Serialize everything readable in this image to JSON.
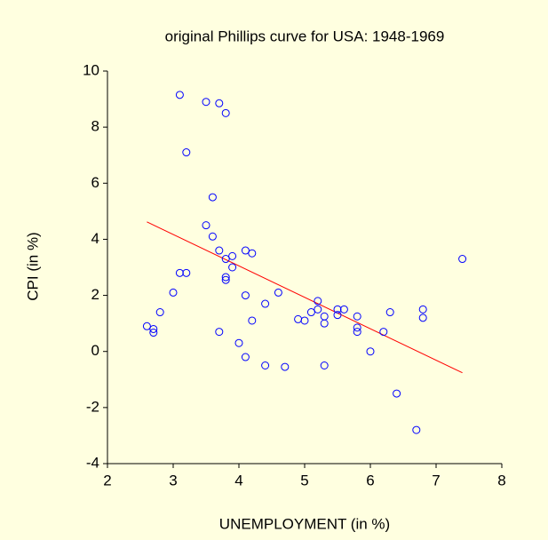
{
  "chart_data": {
    "type": "scatter",
    "title": "original Phillips curve for USA: 1948-1969",
    "x_label": "UNEMPLOYMENT (in %)",
    "y_label": "CPI (in %)",
    "xlim": [
      2,
      8
    ],
    "xticks": [
      2,
      3,
      4,
      5,
      6,
      7,
      8
    ],
    "ylim": [
      -4,
      10
    ],
    "yticks": [
      -4,
      -2,
      0,
      2,
      4,
      6,
      8,
      10
    ],
    "points": {
      "color": "#0000ff",
      "x": [
        2.6,
        2.7,
        2.7,
        2.8,
        3.0,
        3.1,
        3.1,
        3.2,
        3.2,
        3.5,
        3.5,
        3.6,
        3.6,
        3.7,
        3.7,
        3.7,
        3.8,
        3.8,
        3.8,
        3.8,
        3.9,
        3.9,
        4.0,
        4.1,
        4.1,
        4.1,
        4.2,
        4.2,
        4.4,
        4.4,
        4.6,
        4.7,
        4.9,
        5.0,
        5.1,
        5.2,
        5.2,
        5.3,
        5.3,
        5.3,
        5.5,
        5.5,
        5.6,
        5.8,
        5.8,
        5.8,
        6.0,
        6.2,
        6.3,
        6.4,
        6.7,
        6.8,
        6.8,
        7.4
      ],
      "y": [
        0.9,
        0.8,
        0.67,
        1.4,
        2.1,
        9.15,
        2.8,
        7.1,
        2.8,
        8.9,
        4.5,
        5.5,
        4.1,
        8.85,
        3.6,
        0.7,
        8.5,
        3.3,
        2.65,
        2.55,
        3.4,
        3.0,
        0.3,
        3.6,
        2.0,
        -0.2,
        3.5,
        1.1,
        1.7,
        -0.5,
        2.1,
        -0.55,
        1.15,
        1.1,
        1.4,
        1.8,
        1.5,
        1.25,
        1.0,
        -0.5,
        1.5,
        1.3,
        1.5,
        1.25,
        0.85,
        0.7,
        0.0,
        0.7,
        1.4,
        -1.5,
        -2.8,
        1.5,
        1.2,
        3.3
      ]
    },
    "fit_line": {
      "color": "#ff0000",
      "x": [
        2.6,
        7.4
      ],
      "y": [
        4.62,
        -0.76
      ]
    }
  }
}
